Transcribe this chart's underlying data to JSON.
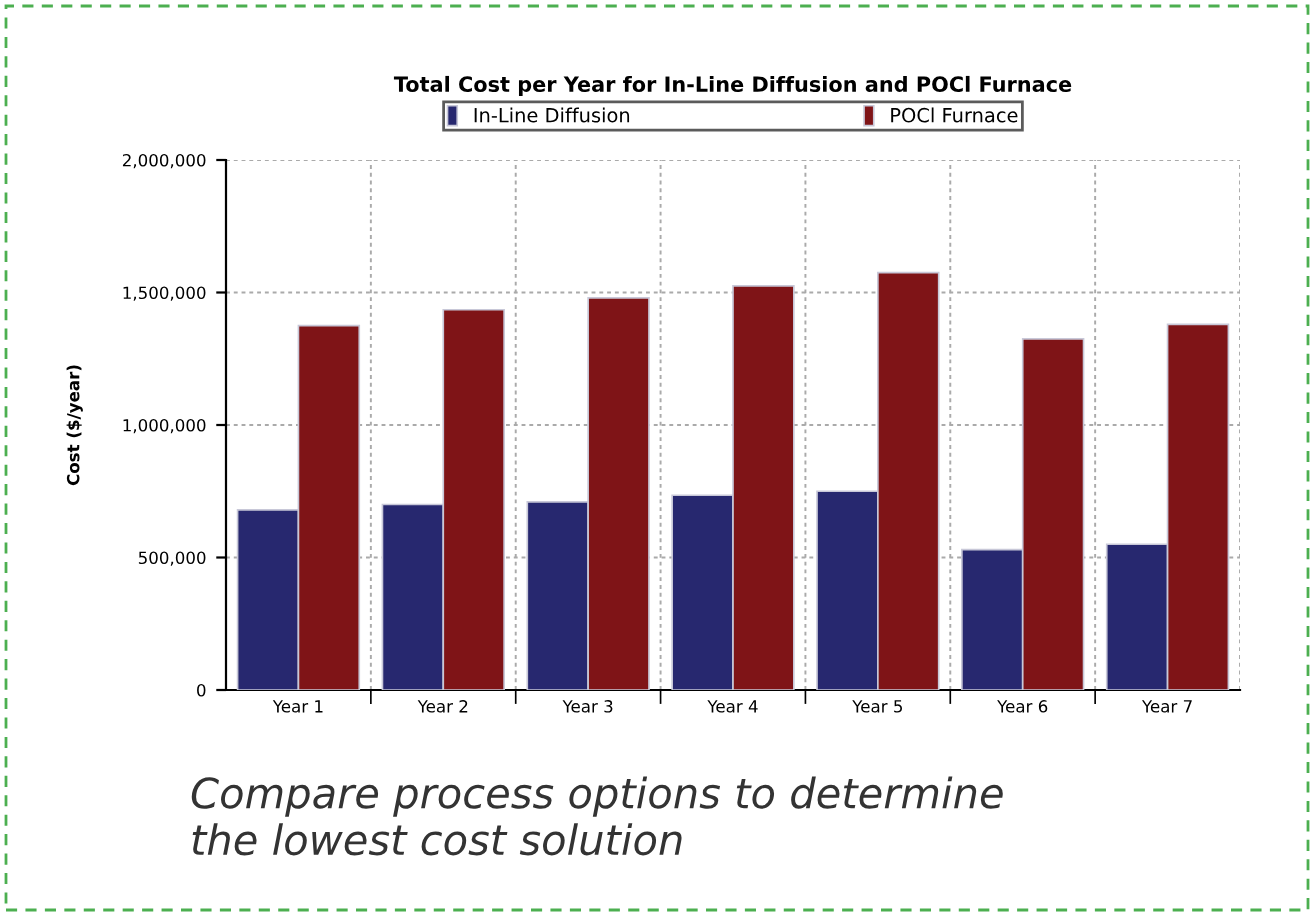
{
  "chart_data": {
    "type": "bar",
    "title": "Total Cost per Year for In-Line Diffusion and POCl Furnace",
    "ylabel": "Cost ($/year)",
    "categories": [
      "Year 1",
      "Year 2",
      "Year 3",
      "Year 4",
      "Year 5",
      "Year 6",
      "Year 7"
    ],
    "series": [
      {
        "name": "In-Line Diffusion",
        "color": "#27286f",
        "values": [
          680000,
          700000,
          710000,
          735000,
          750000,
          530000,
          550000
        ]
      },
      {
        "name": "POCl Furnace",
        "color": "#7f1417",
        "values": [
          1375000,
          1435000,
          1480000,
          1525000,
          1575000,
          1325000,
          1380000
        ]
      }
    ],
    "ylim": [
      0,
      2000000
    ],
    "yticks": [
      {
        "value": 0,
        "label": "0"
      },
      {
        "value": 500000,
        "label": "500,000"
      },
      {
        "value": 1000000,
        "label": "1,000,000"
      },
      {
        "value": 1500000,
        "label": "1,500,000"
      },
      {
        "value": 2000000,
        "label": "2,000,000"
      }
    ],
    "grid": true,
    "legend": "top",
    "annotations": [
      "Compare process options to determine\nthe lowest cost solution"
    ]
  }
}
